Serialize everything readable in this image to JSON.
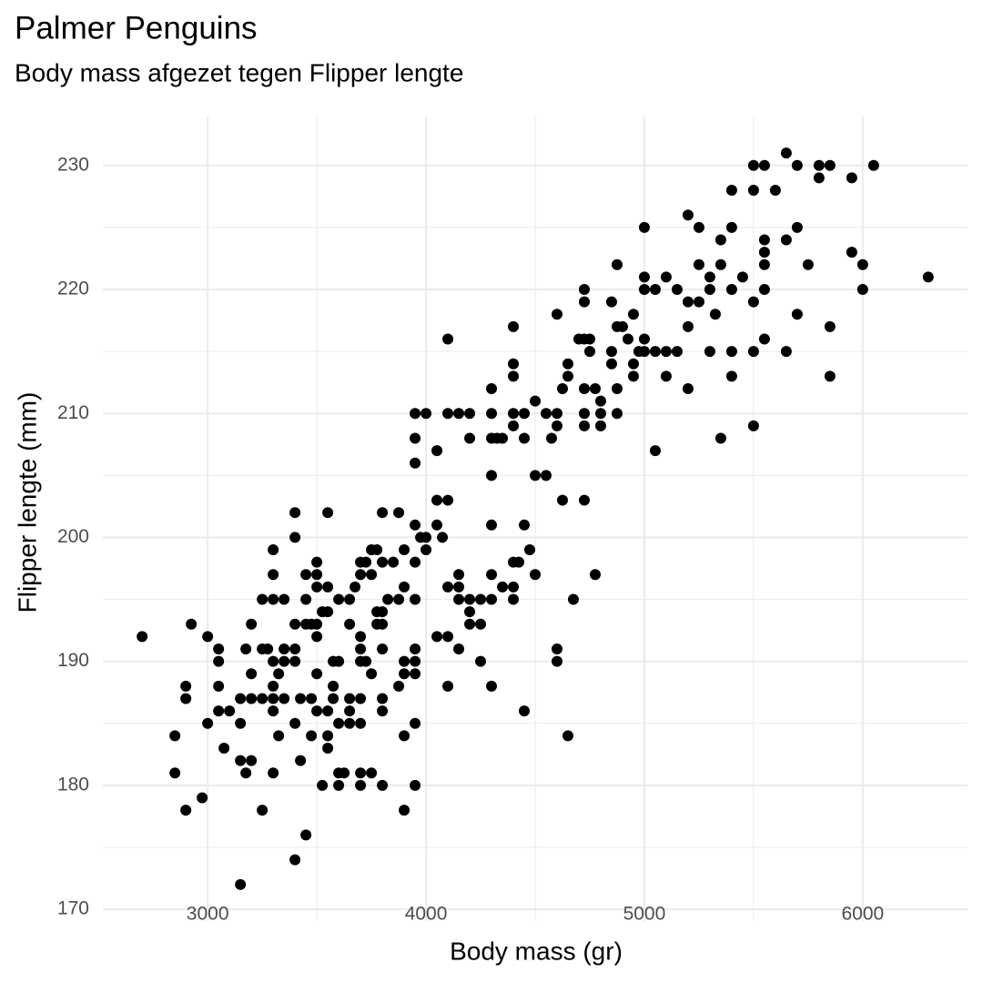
{
  "chart_data": {
    "type": "scatter",
    "title": "Palmer Penguins",
    "subtitle": "Body mass afgezet tegen Flipper lengte",
    "x_label": "Body mass (gr)",
    "y_label": "Flipper lengte (mm)",
    "color": "#000000",
    "grid": true,
    "xlim": [
      2520,
      6480
    ],
    "ylim": [
      169.05,
      233.95
    ],
    "xticks": [
      3000,
      4000,
      5000,
      6000
    ],
    "yticks": [
      170,
      180,
      190,
      200,
      210,
      220,
      230
    ],
    "xminor": [
      3500,
      4500,
      5500
    ],
    "yminor": [
      175,
      185,
      195,
      205,
      215,
      225
    ],
    "x": [
      5650,
      5500,
      5550,
      5800,
      5850,
      6050,
      5700,
      5800,
      5950,
      5400,
      5500,
      5600,
      5200,
      5000,
      5250,
      5400,
      5700,
      5350,
      5550,
      5650,
      5550,
      5950,
      4875,
      5250,
      5350,
      5550,
      5750,
      6000,
      5000,
      5100,
      5300,
      5450,
      6300,
      4725,
      5000,
      5050,
      5150,
      5300,
      5400,
      5550,
      6000,
      4725,
      4850,
      5200,
      5250,
      5500,
      4600,
      4950,
      5325,
      5700,
      4400,
      4875,
      4900,
      5200,
      5850,
      4100,
      4700,
      4750,
      4725,
      4925,
      5000,
      5550,
      4750,
      4850,
      4975,
      5000,
      5050,
      5100,
      5150,
      5300,
      5400,
      5500,
      5650,
      4400,
      4650,
      4850,
      4950,
      4400,
      4650,
      4950,
      5100,
      5400,
      5850,
      4625,
      4725,
      4775,
      4875,
      4300,
      5200,
      4800,
      4500,
      3950,
      4000,
      4100,
      4150,
      4200,
      4300,
      4400,
      4450,
      4550,
      4600,
      4725,
      4800,
      4875,
      4200,
      4300,
      4325,
      4350,
      4450,
      4575,
      5350,
      3950,
      4400,
      4600,
      4725,
      4800,
      5500,
      4050,
      5050,
      3950,
      4300,
      4500,
      4550,
      4050,
      4100,
      4625,
      4725,
      3400,
      3550,
      3800,
      3875,
      3950,
      4050,
      4300,
      4450,
      3400,
      3975,
      4000,
      4075,
      3900,
      3300,
      3750,
      3775,
      4000,
      4475,
      3500,
      3700,
      3725,
      3800,
      3850,
      3950,
      4400,
      4425,
      3450,
      3500,
      3300,
      3700,
      3750,
      4150,
      4300,
      4500,
      4775,
      3500,
      3550,
      3675,
      3900,
      4100,
      4150,
      4350,
      4400,
      3250,
      3300,
      3350,
      3450,
      3600,
      3650,
      3825,
      3875,
      3950,
      4150,
      4200,
      4250,
      4300,
      4400,
      4675,
      3525,
      3550,
      3775,
      3800,
      4200,
      3200,
      3400,
      3450,
      3475,
      3500,
      3650,
      3775,
      3800,
      4200,
      4250,
      2925,
      2700,
      3000,
      3500,
      3700,
      4050,
      4100,
      3050,
      3175,
      3250,
      3275,
      3350,
      3400,
      3700,
      3800,
      3950,
      4150,
      4600,
      3050,
      3300,
      3350,
      3400,
      3575,
      3600,
      3700,
      3725,
      3900,
      3950,
      4250,
      4600,
      3200,
      3325,
      3500,
      3750,
      3900,
      3950,
      2900,
      3050,
      3300,
      3575,
      3875,
      4100,
      4300,
      2900,
      3150,
      3200,
      3250,
      3300,
      3350,
      3425,
      3475,
      3575,
      3650,
      3700,
      3800,
      3050,
      3100,
      3300,
      3500,
      3550,
      3650,
      3800,
      4450,
      3000,
      3150,
      3400,
      3600,
      3650,
      3700,
      3950,
      2850,
      3325,
      3475,
      3550,
      3900,
      4650,
      3075,
      3550,
      2850,
      3175,
      3300,
      3600,
      3625,
      3700,
      3750,
      3150,
      3200,
      3425,
      3525,
      3600,
      3700,
      3800,
      3950,
      2975,
      2900,
      3250,
      3900,
      3450,
      3400,
      3150
    ],
    "values": [
      231,
      230,
      230,
      230,
      230,
      230,
      230,
      229,
      229,
      228,
      228,
      228,
      226,
      225,
      225,
      225,
      225,
      224,
      224,
      224,
      223,
      223,
      222,
      222,
      222,
      222,
      222,
      222,
      221,
      221,
      221,
      221,
      221,
      220,
      220,
      220,
      220,
      220,
      220,
      220,
      220,
      219,
      219,
      219,
      219,
      219,
      218,
      218,
      218,
      218,
      217,
      217,
      217,
      217,
      217,
      216,
      216,
      216,
      216,
      216,
      216,
      216,
      215,
      215,
      215,
      215,
      215,
      215,
      215,
      215,
      215,
      215,
      215,
      214,
      214,
      214,
      214,
      213,
      213,
      213,
      213,
      213,
      213,
      212,
      212,
      212,
      212,
      212,
      212,
      211,
      211,
      210,
      210,
      210,
      210,
      210,
      210,
      210,
      210,
      210,
      210,
      210,
      210,
      210,
      208,
      208,
      208,
      208,
      208,
      208,
      208,
      208,
      209,
      209,
      209,
      209,
      209,
      207,
      207,
      206,
      205,
      205,
      205,
      203,
      203,
      203,
      203,
      202,
      202,
      202,
      202,
      201,
      201,
      201,
      201,
      200,
      200,
      200,
      200,
      199,
      199,
      199,
      199,
      199,
      199,
      198,
      198,
      198,
      198,
      198,
      198,
      198,
      198,
      197,
      197,
      197,
      197,
      197,
      197,
      197,
      197,
      197,
      196,
      196,
      196,
      196,
      196,
      196,
      196,
      196,
      195,
      195,
      195,
      195,
      195,
      195,
      195,
      195,
      195,
      195,
      195,
      195,
      195,
      195,
      195,
      194,
      194,
      194,
      194,
      194,
      193,
      193,
      193,
      193,
      193,
      193,
      193,
      193,
      193,
      193,
      193,
      192,
      192,
      192,
      192,
      192,
      192,
      191,
      191,
      191,
      191,
      191,
      191,
      191,
      191,
      191,
      191,
      191,
      190,
      190,
      190,
      190,
      190,
      190,
      190,
      190,
      190,
      190,
      190,
      190,
      189,
      189,
      189,
      189,
      189,
      189,
      188,
      188,
      188,
      188,
      188,
      188,
      188,
      187,
      187,
      187,
      187,
      187,
      187,
      187,
      187,
      187,
      187,
      187,
      187,
      186,
      186,
      186,
      186,
      186,
      186,
      186,
      186,
      185,
      185,
      185,
      185,
      185,
      185,
      185,
      184,
      184,
      184,
      184,
      184,
      184,
      183,
      183,
      181,
      181,
      181,
      181,
      181,
      181,
      181,
      182,
      182,
      182,
      180,
      180,
      180,
      180,
      180,
      179,
      178,
      178,
      178,
      176,
      174,
      172
    ]
  }
}
